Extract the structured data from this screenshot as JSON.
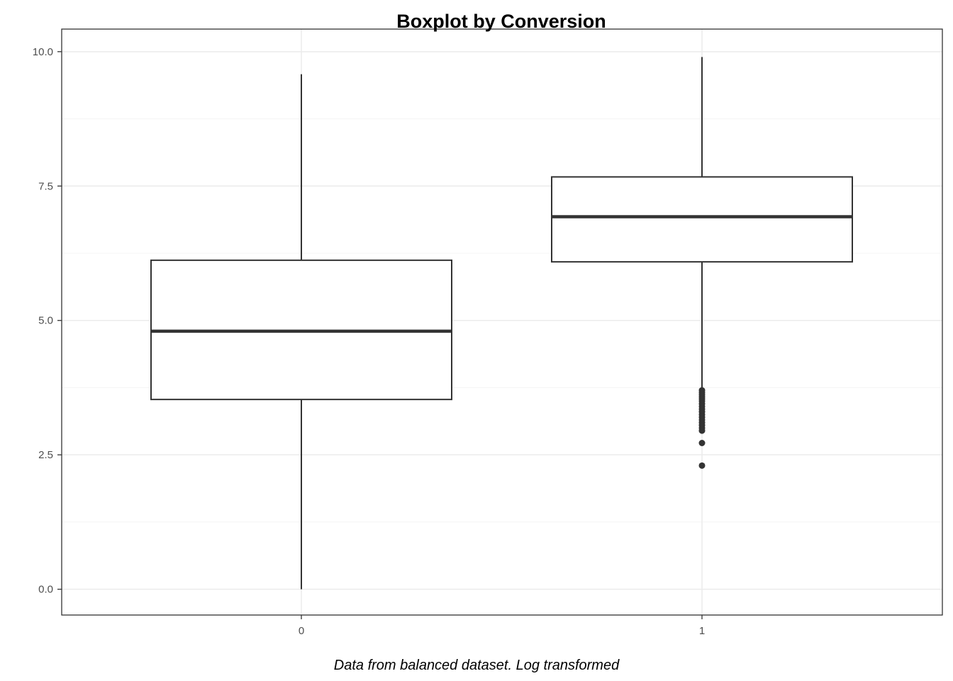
{
  "chart_data": {
    "type": "boxplot",
    "title": "Boxplot by Conversion",
    "caption": "Data from balanced dataset. Log transformed",
    "xlabel": "",
    "ylabel": "",
    "categories": [
      "0",
      "1"
    ],
    "y_ticks": [
      0,
      2.5,
      5,
      7.5,
      10
    ],
    "y_tick_labels": [
      "0.0",
      "2.5",
      "5.0",
      "7.5",
      "10.0"
    ],
    "ylim": [
      -0.48,
      10.42
    ],
    "grid": true,
    "boxes": [
      {
        "category": "0",
        "whisker_low": 0.0,
        "q1": 3.53,
        "median": 4.8,
        "q3": 6.12,
        "whisker_high": 9.58,
        "outliers": []
      },
      {
        "category": "1",
        "whisker_low": 3.72,
        "q1": 6.09,
        "median": 6.93,
        "q3": 7.67,
        "whisker_high": 9.9,
        "outliers": [
          3.7,
          3.66,
          3.62,
          3.58,
          3.54,
          3.5,
          3.45,
          3.4,
          3.35,
          3.3,
          3.25,
          3.2,
          3.15,
          3.1,
          3.05,
          3.0,
          2.95,
          2.72,
          2.3
        ]
      }
    ],
    "colors": {
      "box_stroke": "#333333",
      "panel_border": "#333333",
      "grid_major": "#ebebeb",
      "grid_minor": "#f4f4f4",
      "tick_text": "#4d4d4d",
      "title": "#000000"
    }
  }
}
